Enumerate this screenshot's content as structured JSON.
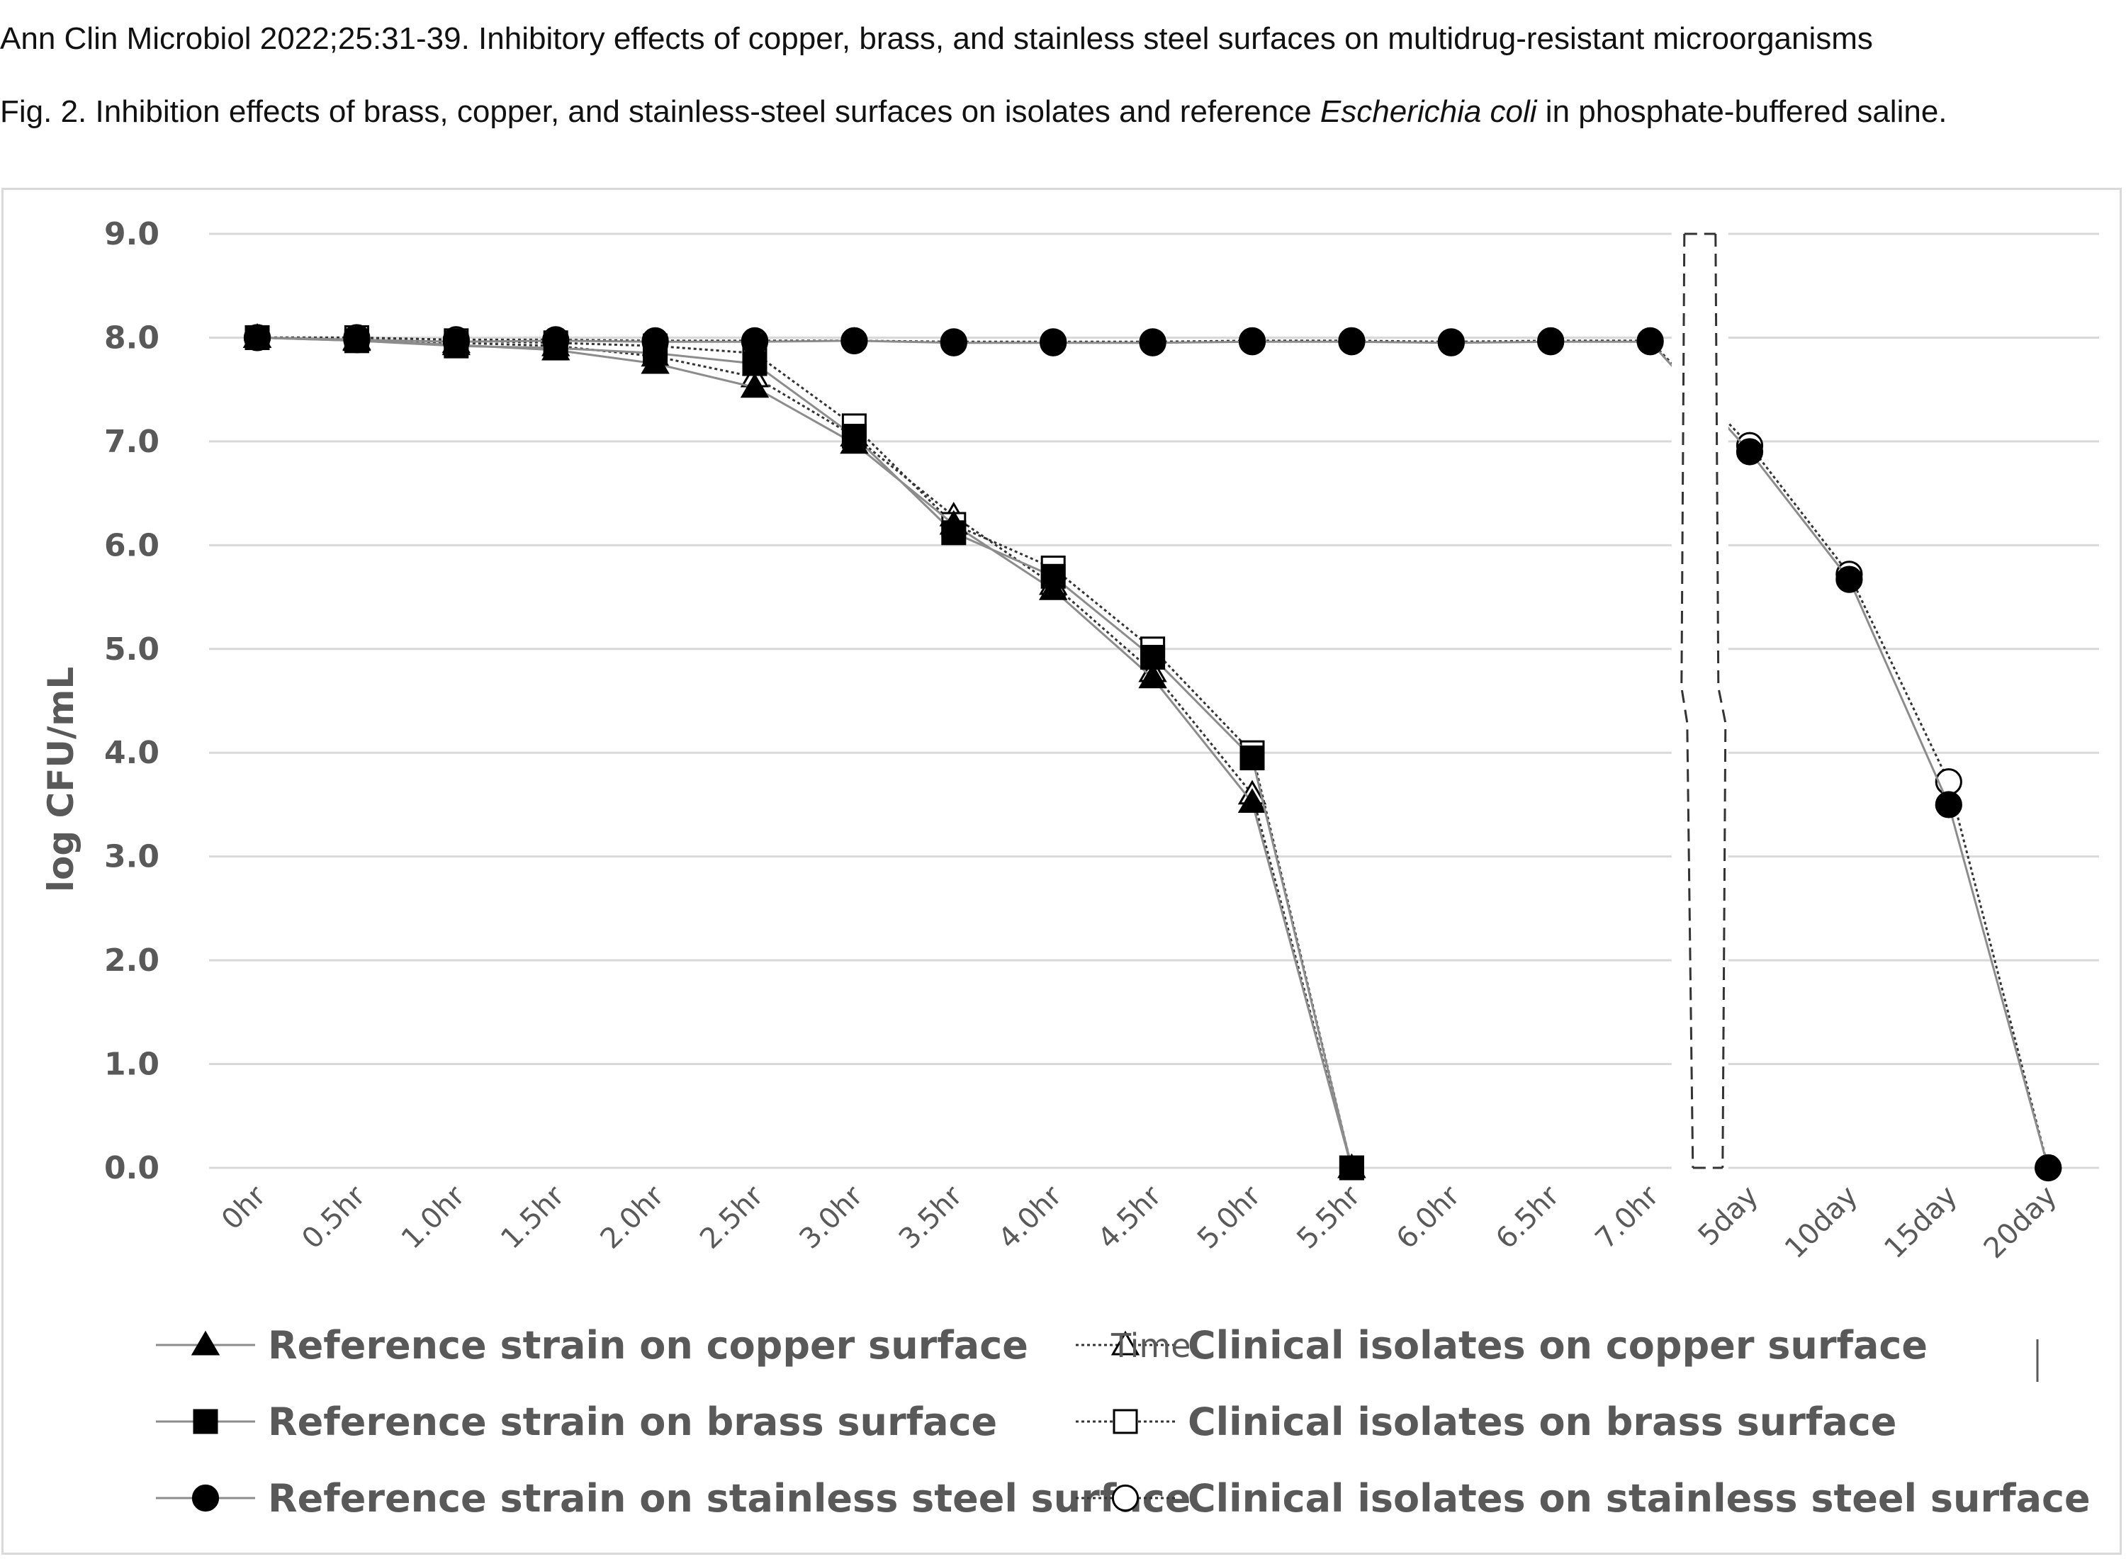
{
  "header": {
    "citation": "Ann Clin Microbiol 2022;25:31-39. Inhibitory effects of copper, brass, and stainless steel surfaces on multidrug-resistant microorganisms",
    "caption_prefix": "Fig. 2. Inhibition effects of brass, copper, and stainless-steel surfaces on isolates and reference ",
    "caption_italic": "Escherichia coli",
    "caption_suffix": " in phosphate-buffered saline."
  },
  "chart_data": {
    "type": "line",
    "xlabel": "Time",
    "ylabel": "log CFU/mL",
    "ylim": [
      0,
      9
    ],
    "yticks": [
      "0.0",
      "1.0",
      "2.0",
      "3.0",
      "4.0",
      "5.0",
      "6.0",
      "7.0",
      "8.0",
      "9.0"
    ],
    "categories": [
      "0hr",
      "0.5hr",
      "1.0hr",
      "1.5hr",
      "2.0hr",
      "2.5hr",
      "3.0hr",
      "3.5hr",
      "4.0hr",
      "4.5hr",
      "5.0hr",
      "5.5hr",
      "6.0hr",
      "6.5hr",
      "7.0hr",
      "5day",
      "10day",
      "15day",
      "20day"
    ],
    "axis_break_between": [
      "7.0hr",
      "5day"
    ],
    "grid": "horizontal",
    "legend_position": "bottom",
    "series": [
      {
        "name": "Reference strain on copper surface",
        "marker": "triangle",
        "filled": true,
        "line": "solid",
        "values": [
          8.0,
          7.97,
          7.93,
          7.88,
          7.75,
          7.52,
          6.98,
          6.2,
          5.57,
          4.72,
          3.52,
          0.0,
          null,
          null,
          null,
          null,
          null,
          null,
          null
        ]
      },
      {
        "name": "Reference strain on brass surface",
        "marker": "square",
        "filled": true,
        "line": "solid",
        "values": [
          8.0,
          7.97,
          7.92,
          7.9,
          7.85,
          7.75,
          7.05,
          6.12,
          5.7,
          4.92,
          3.95,
          0.0,
          null,
          null,
          null,
          null,
          null,
          null,
          null
        ]
      },
      {
        "name": "Reference strain on stainless steel surface",
        "marker": "circle",
        "filled": true,
        "line": "solid",
        "values": [
          8.0,
          7.98,
          7.96,
          7.97,
          7.96,
          7.96,
          7.97,
          7.95,
          7.95,
          7.95,
          7.96,
          7.96,
          7.95,
          7.96,
          7.96,
          6.9,
          5.67,
          3.5,
          0.0
        ]
      },
      {
        "name": "Clinical isolates on copper surface",
        "marker": "triangle",
        "filled": false,
        "line": "dotted",
        "values": [
          8.0,
          7.98,
          7.95,
          7.92,
          7.82,
          7.62,
          7.05,
          6.28,
          5.62,
          4.78,
          3.6,
          0.0,
          null,
          null,
          null,
          null,
          null,
          null,
          null
        ]
      },
      {
        "name": "Clinical isolates on brass surface",
        "marker": "square",
        "filled": false,
        "line": "dotted",
        "values": [
          8.0,
          8.0,
          7.97,
          7.95,
          7.92,
          7.85,
          7.15,
          6.2,
          5.78,
          5.0,
          4.0,
          0.0,
          null,
          null,
          null,
          null,
          null,
          null,
          null
        ]
      },
      {
        "name": "Clinical isolates on stainless steel surface",
        "marker": "circle",
        "filled": false,
        "line": "dotted",
        "values": [
          8.0,
          8.0,
          7.98,
          7.98,
          7.97,
          7.97,
          7.97,
          7.96,
          7.96,
          7.96,
          7.97,
          7.97,
          7.96,
          7.97,
          7.97,
          6.96,
          5.72,
          3.72,
          0.0
        ]
      }
    ]
  }
}
